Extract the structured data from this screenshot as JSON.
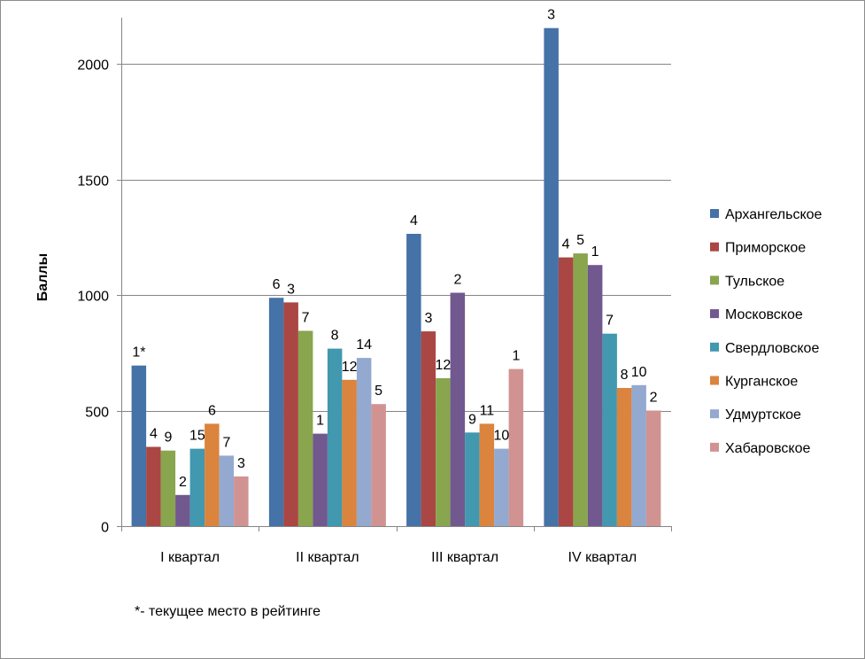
{
  "chart_data": {
    "type": "bar",
    "title": "",
    "xlabel": "",
    "ylabel": "Баллы",
    "ylim": [
      0,
      2200
    ],
    "yticks": [
      0,
      500,
      1000,
      1500,
      2000
    ],
    "grid": true,
    "legend_position": "right",
    "categories": [
      "I квартал",
      "II квартал",
      "III квартал",
      "IV квартал"
    ],
    "series": [
      {
        "name": "Архангельское",
        "color": "#4572A7",
        "values": [
          695,
          988,
          1265,
          2155
        ],
        "labels": [
          "1*",
          "6",
          "4",
          "3"
        ]
      },
      {
        "name": "Приморское",
        "color": "#AA4643",
        "values": [
          343,
          968,
          843,
          1163
        ],
        "labels": [
          "4",
          "3",
          "3",
          "4"
        ]
      },
      {
        "name": "Тульское",
        "color": "#89A54E",
        "values": [
          327,
          845,
          640,
          1180
        ],
        "labels": [
          "9",
          "7",
          "12",
          "5"
        ]
      },
      {
        "name": "Московское",
        "color": "#71588F",
        "values": [
          135,
          400,
          1010,
          1130
        ],
        "labels": [
          "2",
          "1",
          "2",
          "1"
        ]
      },
      {
        "name": "Свердловское",
        "color": "#4198AF",
        "values": [
          335,
          768,
          405,
          833
        ],
        "labels": [
          "15",
          "8",
          "9",
          "7"
        ]
      },
      {
        "name": "Курганское",
        "color": "#DB843D",
        "values": [
          443,
          633,
          443,
          598
        ],
        "labels": [
          "6",
          "12",
          "11",
          "8"
        ]
      },
      {
        "name": "Удмуртское",
        "color": "#93A9CF",
        "values": [
          305,
          728,
          335,
          610
        ],
        "labels": [
          "7",
          "14",
          "10",
          "10"
        ]
      },
      {
        "name": "Хабаровское",
        "color": "#D19392",
        "values": [
          215,
          528,
          680,
          500
        ],
        "labels": [
          "3",
          "5",
          "1",
          "2"
        ]
      }
    ],
    "footnote": "*- текущее место в рейтинге"
  }
}
